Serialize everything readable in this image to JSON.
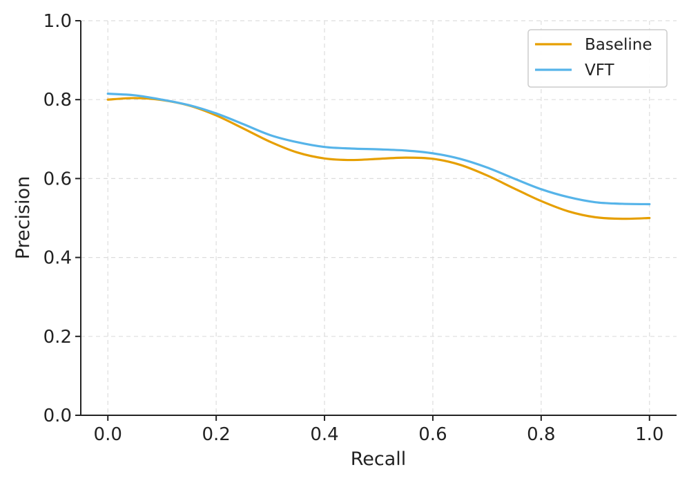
{
  "chart_data": {
    "type": "line",
    "xlabel": "Recall",
    "ylabel": "Precision",
    "xlim": [
      -0.05,
      1.05
    ],
    "ylim": [
      0.0,
      1.0
    ],
    "xticks": [
      "0.0",
      "0.2",
      "0.4",
      "0.6",
      "0.8",
      "1.0"
    ],
    "yticks": [
      "0.0",
      "0.2",
      "0.4",
      "0.6",
      "0.8",
      "1.0"
    ],
    "grid": true,
    "legend_position": "top-right",
    "x": [
      0.0,
      0.05,
      0.1,
      0.15,
      0.2,
      0.25,
      0.3,
      0.35,
      0.4,
      0.45,
      0.5,
      0.55,
      0.6,
      0.65,
      0.7,
      0.75,
      0.8,
      0.85,
      0.9,
      0.95,
      1.0
    ],
    "series": [
      {
        "name": "Baseline",
        "color": "#E69F00",
        "values": [
          0.8,
          0.804,
          0.799,
          0.785,
          0.76,
          0.727,
          0.693,
          0.666,
          0.651,
          0.647,
          0.65,
          0.653,
          0.65,
          0.635,
          0.608,
          0.575,
          0.543,
          0.517,
          0.502,
          0.498,
          0.5
        ]
      },
      {
        "name": "VFT",
        "color": "#56B4E9",
        "values": [
          0.815,
          0.811,
          0.8,
          0.786,
          0.765,
          0.738,
          0.71,
          0.692,
          0.68,
          0.676,
          0.674,
          0.671,
          0.664,
          0.65,
          0.628,
          0.6,
          0.573,
          0.553,
          0.54,
          0.536,
          0.535
        ]
      }
    ]
  }
}
